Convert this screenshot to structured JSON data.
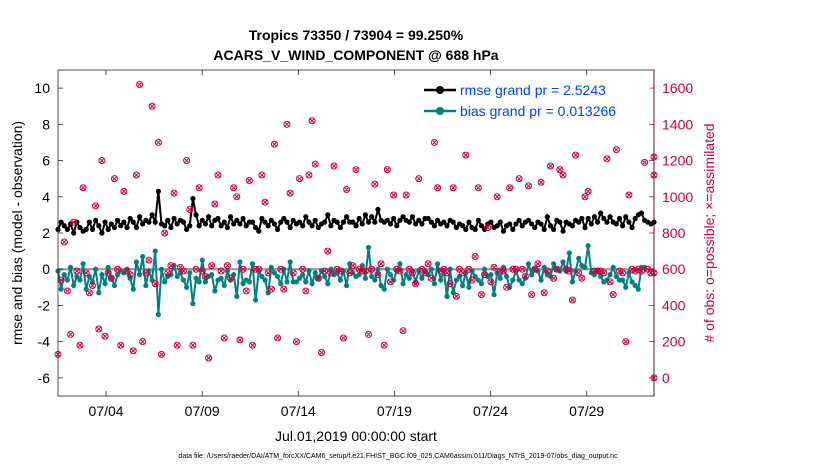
{
  "chart_data": {
    "type": "line",
    "title_line1": "Tropics 73350 / 73904 = 99.250%",
    "title_line2": "ACARS_V_WIND_COMPONENT @ 688 hPa",
    "xlabel": "Jul.01,2019 00:00:00 start",
    "ylabel_left": "rmse and bias (model - observation)",
    "ylabel_right": "# of obs: o=possible; ×=assimilated",
    "footer": "data file: /Users/raeder/DAI/ATM_forcXX/CAM6_setup/f.e21.FHIST_BGC.f09_025.CAM6assim.011/Diags_NTrS_2019-07/obs_diag_output.nc",
    "x_range_days": [
      0.5,
      31.5
    ],
    "xticks": [
      {
        "day": 3,
        "label": "07/04"
      },
      {
        "day": 8,
        "label": "07/09"
      },
      {
        "day": 13,
        "label": "07/14"
      },
      {
        "day": 18,
        "label": "07/19"
      },
      {
        "day": 23,
        "label": "07/24"
      },
      {
        "day": 28,
        "label": "07/29"
      }
    ],
    "ylim_left": [
      -7,
      11
    ],
    "yticks_left": [
      -6,
      -4,
      -2,
      0,
      2,
      4,
      6,
      8,
      10
    ],
    "ylim_right": [
      -100,
      1700
    ],
    "yticks_right": [
      0,
      200,
      400,
      600,
      800,
      1000,
      1200,
      1400,
      1600
    ],
    "grid": false,
    "legend_position": "top-right",
    "colors": {
      "rmse": "#000000",
      "bias": "#008080",
      "obs": "#cc0044",
      "zero_line": "#999999",
      "legend_text": "#0044ee",
      "axis": "#262626"
    },
    "series": [
      {
        "name": "rmse grand pr = 2.5243",
        "axis": "left",
        "values": [
          2.2,
          2.6,
          2.4,
          2.2,
          2.5,
          2.0,
          2.6,
          2.3,
          2.1,
          2.2,
          2.6,
          2.2,
          2.7,
          2.4,
          2.0,
          2.6,
          2.2,
          2.5,
          2.3,
          2.7,
          2.4,
          2.6,
          2.3,
          2.8,
          2.6,
          2.3,
          2.9,
          2.5,
          2.7,
          2.6,
          3.0,
          2.6,
          4.3,
          2.5,
          2.4,
          2.7,
          2.3,
          2.8,
          2.5,
          2.7,
          2.6,
          2.2,
          2.4,
          3.9,
          3.0,
          2.4,
          2.7,
          2.5,
          2.9,
          2.4,
          2.7,
          2.8,
          2.4,
          2.6,
          2.3,
          2.9,
          2.5,
          2.7,
          2.5,
          2.8,
          2.4,
          2.6,
          2.6,
          2.3,
          2.1,
          2.8,
          2.6,
          2.4,
          2.7,
          2.5,
          2.2,
          2.6,
          2.8,
          2.6,
          2.3,
          2.7,
          2.5,
          2.6,
          2.4,
          2.9,
          2.6,
          2.4,
          2.7,
          2.3,
          2.5,
          2.6,
          3.0,
          2.4,
          2.7,
          2.6,
          2.3,
          2.6,
          2.9,
          2.6,
          2.6,
          2.4,
          2.8,
          2.5,
          3.0,
          2.6,
          2.9,
          2.6,
          3.3,
          2.7,
          2.6,
          2.7,
          2.5,
          2.8,
          2.4,
          2.7,
          2.9,
          2.7,
          2.6,
          2.9,
          2.5,
          2.7,
          2.5,
          2.8,
          2.8,
          2.6,
          2.4,
          2.7,
          2.5,
          2.6,
          2.4,
          2.7,
          2.6,
          2.3,
          2.5,
          2.4,
          2.2,
          2.6,
          2.3,
          2.2,
          2.7,
          2.4,
          2.2,
          2.5,
          2.6,
          2.3,
          2.4,
          2.6,
          2.1,
          2.4,
          2.5,
          2.2,
          2.5,
          2.7,
          2.4,
          2.6,
          2.7,
          2.5,
          2.3,
          2.6,
          2.5,
          2.2,
          2.9,
          2.4,
          2.2,
          2.7,
          2.6,
          2.1,
          2.6,
          2.5,
          2.4,
          2.7,
          2.6,
          2.8,
          2.3,
          2.8,
          2.5,
          2.9,
          2.6,
          3.1,
          2.8,
          2.6,
          2.9,
          2.6,
          2.5,
          2.8,
          2.4,
          2.9,
          2.6,
          2.3,
          2.8,
          3.0,
          3.1,
          2.7,
          2.6,
          2.5,
          2.6
        ]
      },
      {
        "name": "bias grand pr = 0.013266",
        "axis": "left",
        "values": [
          -0.1,
          -1.1,
          -0.3,
          -0.6,
          0.1,
          -0.9,
          -0.4,
          -0.6,
          0.3,
          -1.1,
          -0.4,
          -0.7,
          0.0,
          -1.3,
          -0.3,
          -0.8,
          0.1,
          -0.5,
          -0.9,
          -0.3,
          -0.1,
          -0.2,
          0.0,
          -0.5,
          -1.1,
          0.4,
          -0.3,
          0.7,
          -0.9,
          -0.1,
          -0.6,
          1.0,
          -2.5,
          0.0,
          -0.7,
          -0.4,
          -0.3,
          0.2,
          -0.4,
          -0.2,
          -0.6,
          -1.0,
          -0.2,
          -1.9,
          -0.5,
          -0.7,
          0.5,
          -0.7,
          -0.4,
          -0.3,
          -1.2,
          -0.6,
          -0.5,
          -0.9,
          -0.1,
          -0.6,
          -0.3,
          -1.5,
          0.4,
          -0.8,
          -0.6,
          -0.7,
          0.3,
          -1.7,
          -0.1,
          -0.4,
          -0.6,
          -1.3,
          0.1,
          -0.2,
          -0.4,
          -0.8,
          0.0,
          -0.7,
          0.4,
          -0.7,
          -0.7,
          -0.5,
          -0.3,
          -0.7,
          -0.1,
          -0.8,
          -0.2,
          -0.5,
          -0.1,
          -0.4,
          -0.8,
          0.0,
          -0.3,
          -0.2,
          -0.6,
          -0.1,
          -0.9,
          0.3,
          -0.2,
          -0.4,
          -0.3,
          0.2,
          -0.5,
          1.2,
          -0.4,
          -0.6,
          0.0,
          -0.9,
          -1.1,
          0.0,
          -0.3,
          -0.6,
          -0.1,
          0.3,
          -0.8,
          -0.3,
          -0.5,
          -0.1,
          -0.7,
          -0.1,
          -0.5,
          -0.1,
          -0.3,
          0.0,
          -0.8,
          0.3,
          -0.6,
          -0.1,
          -1.5,
          0.0,
          -1.3,
          -0.6,
          -0.4,
          -0.9,
          -0.2,
          -1.0,
          -0.1,
          -0.4,
          -0.6,
          -0.8,
          0.0,
          -0.4,
          -0.3,
          -1.4,
          -0.2,
          -0.5,
          0.1,
          -0.4,
          -1.0,
          -0.6,
          -0.1,
          -0.6,
          -0.8,
          -0.5,
          0.3,
          -0.3,
          0.0,
          -0.1,
          -0.6,
          0.1,
          -0.3,
          -0.4,
          0.3,
          0.0,
          -0.1,
          0.4,
          -0.1,
          0.9,
          -0.7,
          -0.1,
          0.6,
          0.2,
          0.1,
          1.3,
          -0.2,
          -0.3,
          -0.1,
          -0.4,
          -0.7,
          -0.6,
          -0.3,
          0.1,
          -0.4,
          -0.6,
          -0.6,
          -1.0,
          -0.2,
          -0.7,
          -0.9,
          -1.1,
          0.1,
          0.1
        ]
      },
      {
        "name": "obs",
        "axis": "right",
        "values": [
          130,
          540,
          750,
          480,
          240,
          860,
          590,
          180,
          1050,
          580,
          470,
          510,
          950,
          270,
          1200,
          230,
          580,
          550,
          1100,
          600,
          180,
          1030,
          590,
          570,
          150,
          1120,
          1620,
          200,
          580,
          650,
          1500,
          520,
          1300,
          130,
          800,
          580,
          620,
          1020,
          180,
          610,
          590,
          1200,
          930,
          180,
          600,
          1050,
          590,
          560,
          110,
          620,
          960,
          1120,
          590,
          220,
          620,
          550,
          1050,
          1000,
          210,
          600,
          480,
          1090,
          180,
          600,
          600,
          1120,
          970,
          580,
          490,
          1290,
          220,
          600,
          490,
          1400,
          1020,
          580,
          200,
          1100,
          600,
          480,
          1120,
          1420,
          1180,
          550,
          140,
          590,
          700,
          580,
          1170,
          600,
          590,
          220,
          1040,
          580,
          620,
          1150,
          600,
          590,
          590,
          240,
          600,
          1070,
          570,
          630,
          180,
          1150,
          530,
          1010,
          600,
          590,
          260,
          1010,
          600,
          580,
          520,
          1100,
          600,
          580,
          630,
          550,
          1300,
          1050,
          590,
          600,
          580,
          520,
          1050,
          450,
          600,
          580,
          1230,
          600,
          540,
          670,
          1050,
          460,
          570,
          830,
          530,
          610,
          1000,
          590,
          590,
          500,
          1050,
          600,
          600,
          1100,
          600,
          560,
          1060,
          460,
          600,
          630,
          1080,
          470,
          590,
          1170,
          550,
          600,
          1150,
          1120,
          600,
          590,
          430,
          1230,
          580,
          550,
          1000,
          1030,
          1480,
          590,
          590,
          590,
          580,
          1210,
          530,
          460,
          1260,
          590,
          580,
          200,
          1010,
          600,
          590,
          600,
          590,
          1190,
          600,
          580,
          1120,
          580,
          1220,
          0
        ]
      }
    ]
  }
}
